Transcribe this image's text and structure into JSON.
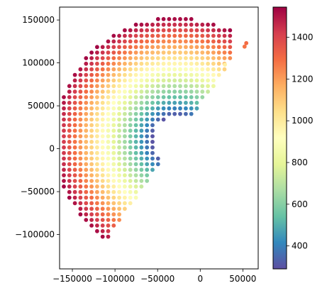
{
  "chart_data": {
    "type": "scatter",
    "title": "",
    "xlabel": "",
    "ylabel": "",
    "colormap": "Spectral_r",
    "xlim": [
      -165000,
      68000
    ],
    "ylim": [
      -140000,
      165000
    ],
    "x_ticks": [
      -150000,
      -100000,
      -50000,
      0,
      50000
    ],
    "x_tick_labels": [
      "−150000",
      "−100000",
      "−50000",
      "0",
      "50000"
    ],
    "y_ticks": [
      -100000,
      -50000,
      0,
      50000,
      100000,
      150000
    ],
    "y_tick_labels": [
      "−100000",
      "−50000",
      "0",
      "50000",
      "100000",
      "150000"
    ],
    "colorbar": {
      "range": [
        290,
        1545
      ],
      "ticks": [
        400,
        600,
        800,
        1000,
        1200,
        1400
      ],
      "tick_labels": [
        "400",
        "600",
        "800",
        "1000",
        "1200",
        "1400"
      ]
    },
    "distribution": {
      "description_values": "points on a regular grid spaced ~6500 units inside a half-annulus centred near (-28000, 10000); value increases with radius",
      "center": [
        -28000,
        10000
      ],
      "r_inner": 28000,
      "r_outer": 143000,
      "angle_start_deg": 55,
      "angle_end_deg": 235,
      "grid_spacing": 6500,
      "value_at_inner": 300,
      "value_at_outer": 1540
    },
    "outliers": [
      {
        "x": 29000,
        "y": 98000,
        "value": 980
      },
      {
        "x": 54000,
        "y": 123000,
        "value": 1300
      },
      {
        "x": 52000,
        "y": 119000,
        "value": 1280
      }
    ],
    "colors": {
      "stops": [
        "#5e4fa2",
        "#3288bd",
        "#66c2a5",
        "#abdda4",
        "#e6f598",
        "#ffffbf",
        "#fee08b",
        "#fdae61",
        "#f46d43",
        "#d53e4f",
        "#9e0142"
      ]
    }
  }
}
